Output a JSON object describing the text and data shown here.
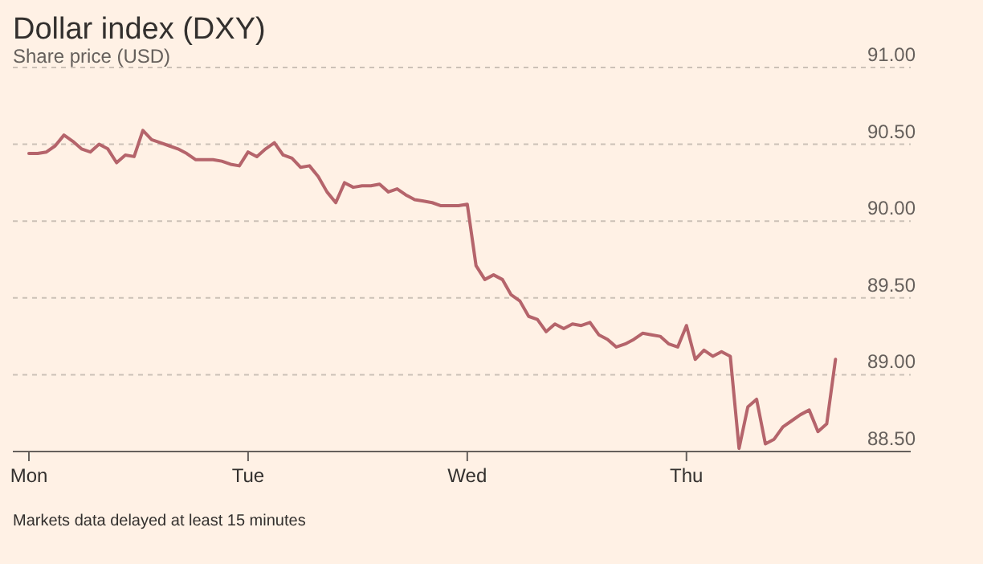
{
  "chart_data": {
    "type": "line",
    "title": "Dollar index (DXY)",
    "subtitle": "Share price (USD)",
    "annotations": [
      "Markets data delayed at least 15 minutes"
    ],
    "categories": [
      "Mon",
      null,
      null,
      null,
      null,
      null,
      null,
      null,
      null,
      null,
      null,
      null,
      null,
      null,
      null,
      null,
      null,
      null,
      null,
      null,
      null,
      null,
      null,
      null,
      null,
      "Tue",
      null,
      null,
      null,
      null,
      null,
      null,
      null,
      null,
      null,
      null,
      null,
      null,
      null,
      null,
      null,
      null,
      null,
      null,
      null,
      null,
      null,
      null,
      null,
      null,
      "Wed",
      null,
      null,
      null,
      null,
      null,
      null,
      null,
      null,
      null,
      null,
      null,
      null,
      null,
      null,
      null,
      null,
      null,
      null,
      null,
      null,
      null,
      null,
      null,
      null,
      "Thu",
      null,
      null,
      null,
      null,
      null,
      null,
      null,
      null,
      null,
      null,
      null,
      null,
      null,
      null,
      null,
      null,
      null,
      null,
      null,
      null,
      null
    ],
    "series": [
      {
        "color": "#b5646b",
        "values": [
          90.44,
          90.44,
          90.45,
          90.49,
          90.56,
          90.52,
          90.47,
          90.45,
          90.5,
          90.47,
          90.38,
          90.43,
          90.42,
          90.59,
          90.53,
          90.51,
          90.49,
          90.47,
          90.44,
          90.4,
          90.4,
          90.4,
          90.39,
          90.37,
          90.36,
          90.45,
          90.42,
          90.47,
          90.51,
          90.43,
          90.41,
          90.35,
          90.36,
          90.29,
          90.19,
          90.12,
          90.25,
          90.22,
          90.23,
          90.23,
          90.24,
          90.19,
          90.21,
          90.17,
          90.14,
          90.13,
          90.12,
          90.1,
          90.1,
          90.1,
          90.11,
          89.71,
          89.62,
          89.65,
          89.62,
          89.52,
          89.48,
          89.38,
          89.36,
          89.28,
          89.33,
          89.3,
          89.33,
          89.32,
          89.34,
          89.26,
          89.23,
          89.18,
          89.2,
          89.23,
          89.27,
          89.26,
          89.25,
          89.2,
          89.18,
          89.32,
          89.1,
          89.16,
          89.12,
          89.15,
          89.12,
          88.52,
          88.79,
          88.84,
          88.55,
          88.58,
          88.66,
          88.7,
          88.74,
          88.77,
          88.63,
          88.68,
          89.1,
          null,
          null,
          null,
          null
        ]
      }
    ],
    "ylim": [
      88.5,
      91
    ],
    "yticks": [
      {
        "value": 88.5,
        "label": "88.50"
      },
      {
        "value": 89,
        "label": "89.00"
      },
      {
        "value": 89.5,
        "label": "89.50"
      },
      {
        "value": 90,
        "label": "90.00"
      },
      {
        "value": 90.5,
        "label": "90.50"
      },
      {
        "value": 91,
        "label": "91.00"
      }
    ],
    "grid": "y",
    "line_style": "solid",
    "marker": "none"
  }
}
